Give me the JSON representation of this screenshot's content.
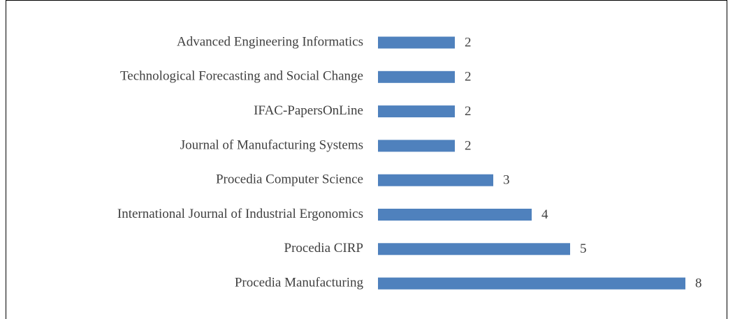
{
  "chart_data": {
    "type": "bar",
    "orientation": "horizontal",
    "categories": [
      "Advanced Engineering Informatics",
      "Technological Forecasting and Social Change",
      "IFAC-PapersOnLine",
      "Journal of Manufacturing Systems",
      "Procedia Computer Science",
      "International Journal of Industrial Ergonomics",
      "Procedia CIRP",
      "Procedia Manufacturing"
    ],
    "values": [
      2,
      2,
      2,
      2,
      3,
      4,
      5,
      8
    ],
    "color": "#4f81bd"
  }
}
